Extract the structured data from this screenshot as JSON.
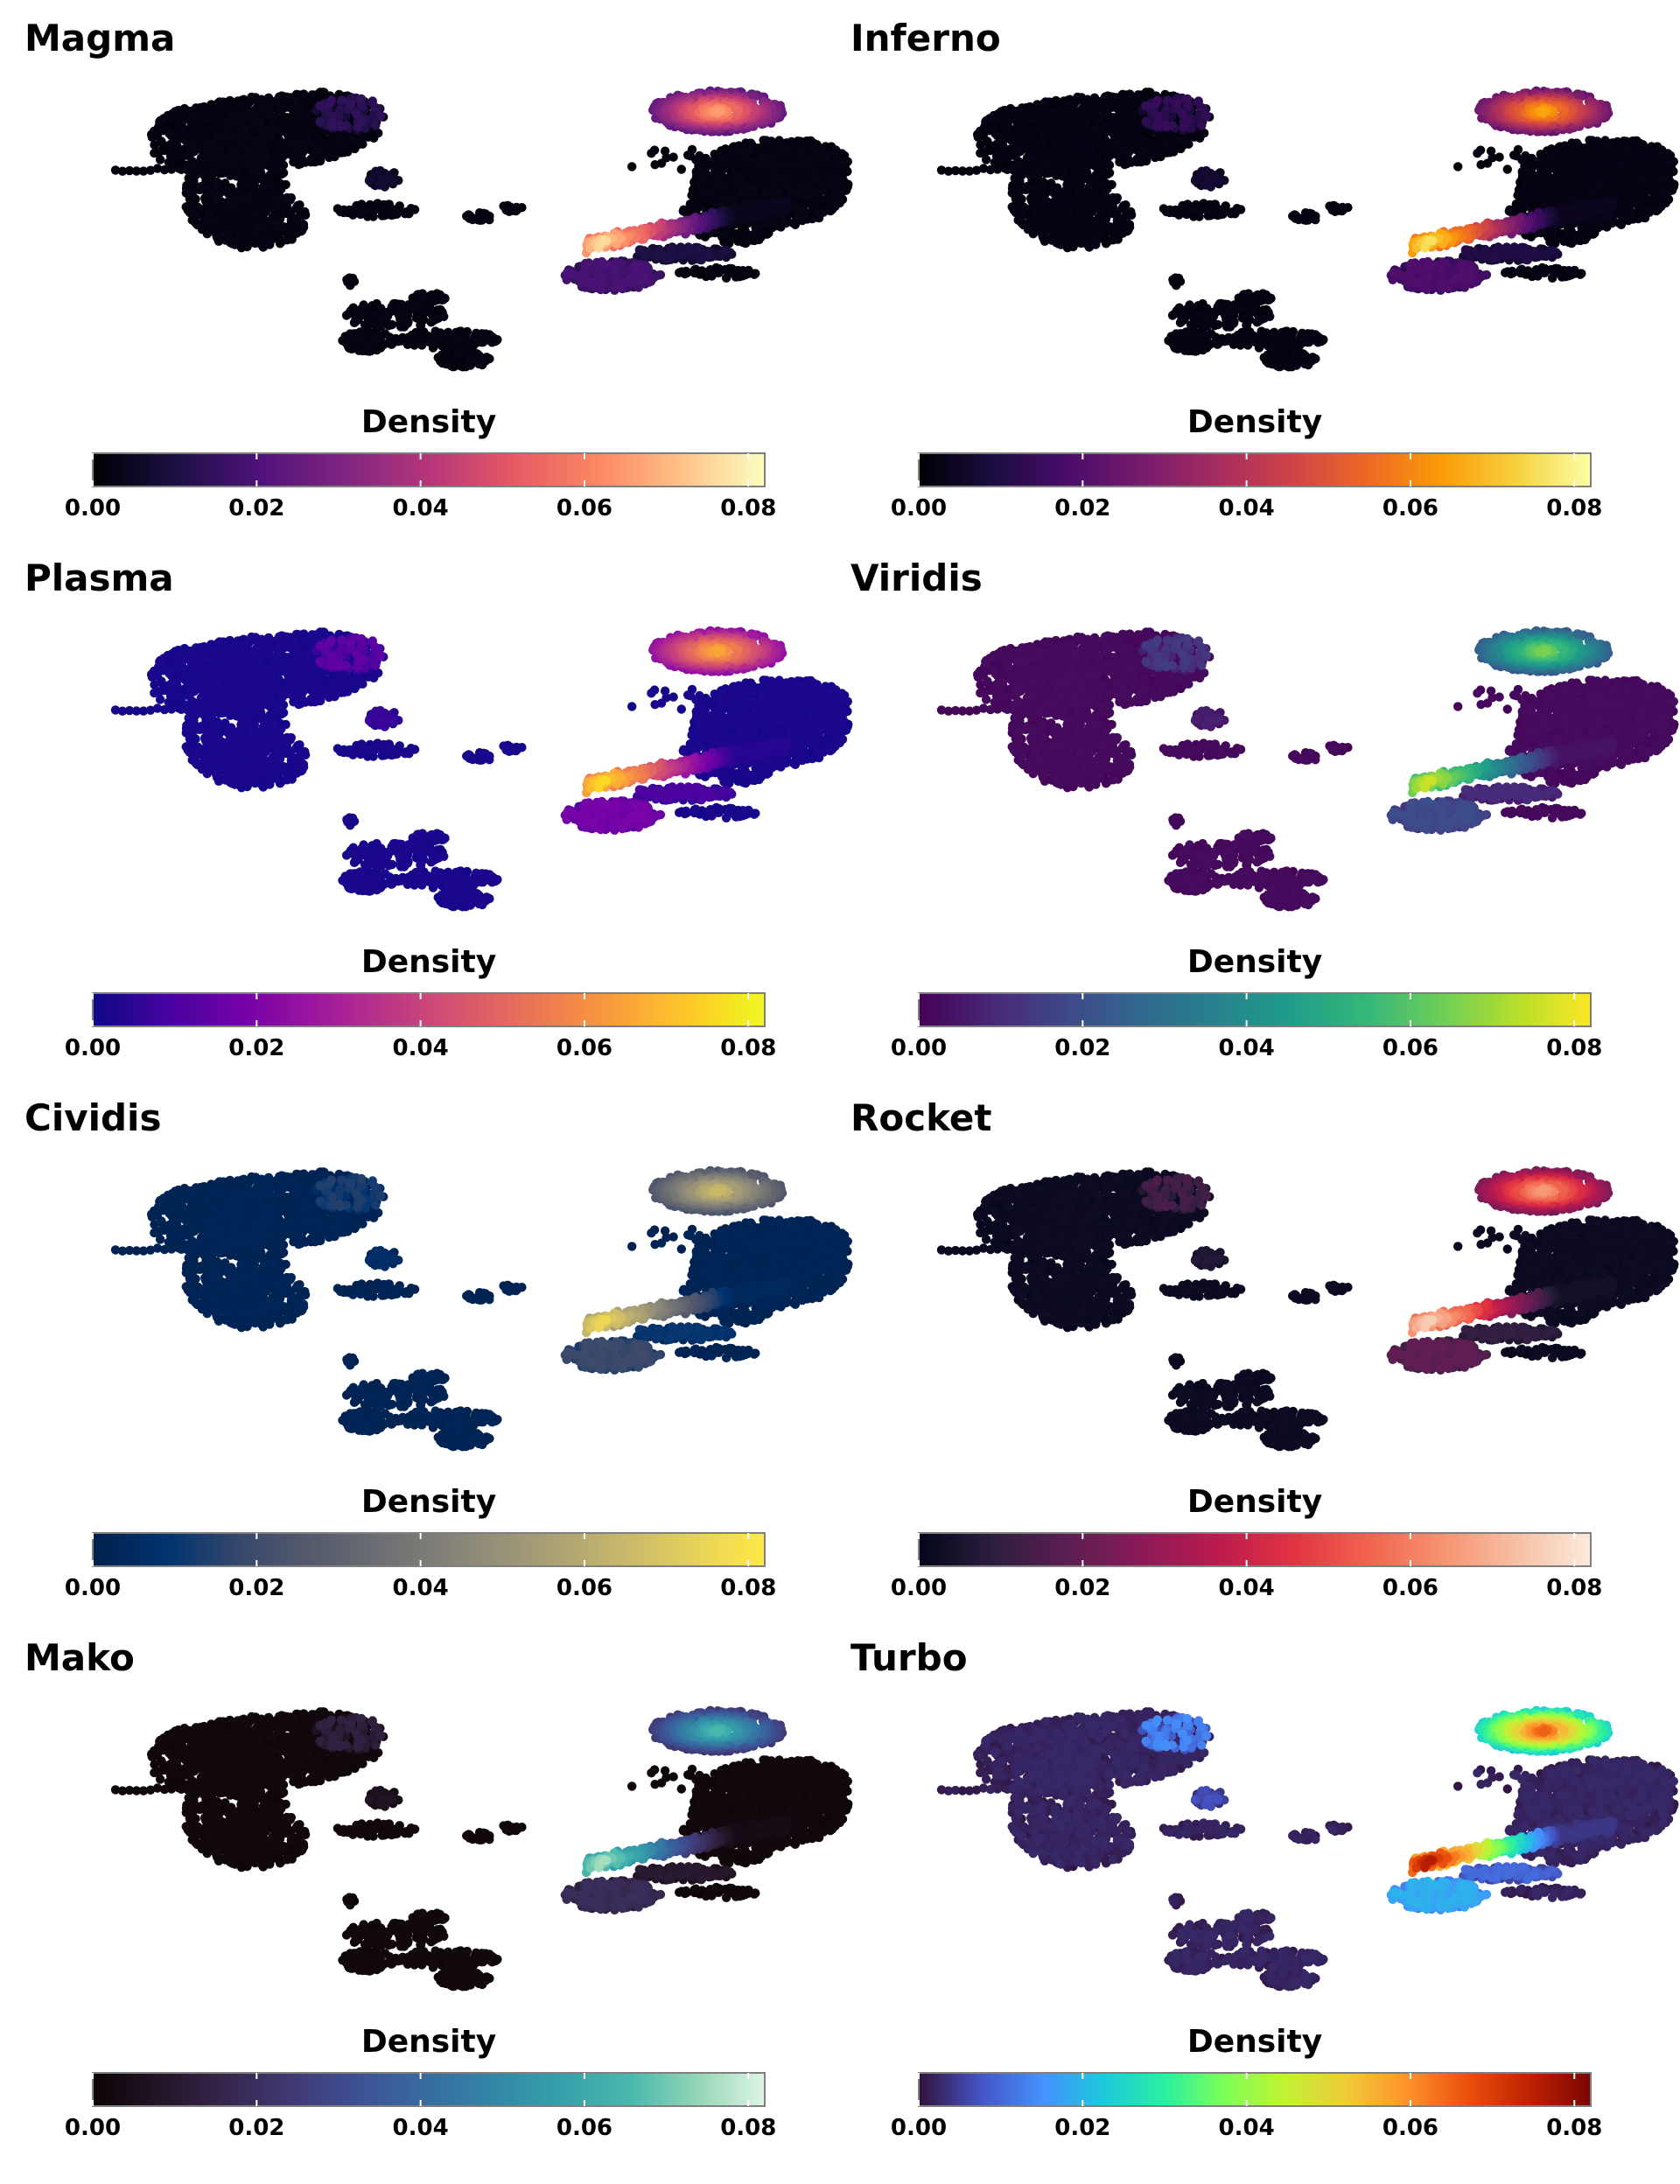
{
  "chart_data": [
    {
      "type": "scatter",
      "title": "Magma",
      "colormap": "magma",
      "legend": {
        "title": "Density",
        "ticks": [
          "0.00",
          "0.02",
          "0.04",
          "0.06",
          "0.08"
        ],
        "range": [
          0,
          0.082
        ],
        "position": "bottom"
      },
      "colors": [
        "#000004",
        "#1c1044",
        "#4f127b",
        "#812581",
        "#b5367a",
        "#e55964",
        "#fb8761",
        "#fec287",
        "#fcfdbf"
      ]
    },
    {
      "type": "scatter",
      "title": "Inferno",
      "colormap": "inferno",
      "legend": {
        "title": "Density",
        "ticks": [
          "0.00",
          "0.02",
          "0.04",
          "0.06",
          "0.08"
        ],
        "range": [
          0,
          0.082
        ],
        "position": "bottom"
      },
      "colors": [
        "#000004",
        "#1b0c41",
        "#4a0c6b",
        "#781c6d",
        "#a52c60",
        "#cf4446",
        "#ed6925",
        "#fb9b06",
        "#f7d13d",
        "#fcffa4"
      ]
    },
    {
      "type": "scatter",
      "title": "Plasma",
      "colormap": "plasma",
      "legend": {
        "title": "Density",
        "ticks": [
          "0.00",
          "0.02",
          "0.04",
          "0.06",
          "0.08"
        ],
        "range": [
          0,
          0.082
        ],
        "position": "bottom"
      },
      "colors": [
        "#0d0887",
        "#47039f",
        "#7301a8",
        "#9c179e",
        "#bd3786",
        "#d8576b",
        "#ed7953",
        "#fa9e3b",
        "#fdc926",
        "#f0f921"
      ]
    },
    {
      "type": "scatter",
      "title": "Viridis",
      "colormap": "viridis",
      "legend": {
        "title": "Density",
        "ticks": [
          "0.00",
          "0.02",
          "0.04",
          "0.06",
          "0.08"
        ],
        "range": [
          0,
          0.082
        ],
        "position": "bottom"
      },
      "colors": [
        "#440154",
        "#482878",
        "#3e4989",
        "#31688e",
        "#26828e",
        "#1f9e89",
        "#35b779",
        "#6ece58",
        "#b5de2b",
        "#fde725"
      ]
    },
    {
      "type": "scatter",
      "title": "Cividis",
      "colormap": "cividis",
      "legend": {
        "title": "Density",
        "ticks": [
          "0.00",
          "0.02",
          "0.04",
          "0.06",
          "0.08"
        ],
        "range": [
          0,
          0.082
        ],
        "position": "bottom"
      },
      "colors": [
        "#00204d",
        "#00336f",
        "#39486b",
        "#575c6d",
        "#707173",
        "#8a8779",
        "#a69d75",
        "#c4b56c",
        "#e4cf5b",
        "#ffea46"
      ]
    },
    {
      "type": "scatter",
      "title": "Rocket",
      "colormap": "rocket",
      "legend": {
        "title": "Density",
        "ticks": [
          "0.00",
          "0.02",
          "0.04",
          "0.06",
          "0.08"
        ],
        "range": [
          0,
          0.082
        ],
        "position": "bottom"
      },
      "colors": [
        "#03051a",
        "#2c1e3e",
        "#5c1e51",
        "#8b1a58",
        "#bb1a4e",
        "#e13342",
        "#f1634d",
        "#f69270",
        "#f7bfa3",
        "#faebdd"
      ]
    },
    {
      "type": "scatter",
      "title": "Mako",
      "colormap": "mako",
      "legend": {
        "title": "Density",
        "ticks": [
          "0.00",
          "0.02",
          "0.04",
          "0.06",
          "0.08"
        ],
        "range": [
          0,
          0.082
        ],
        "position": "bottom"
      },
      "colors": [
        "#0b0405",
        "#231526",
        "#35264c",
        "#403a75",
        "#3d5296",
        "#366da0",
        "#3487a6",
        "#35a1ab",
        "#49b9ad",
        "#94d6b6",
        "#def5e5"
      ]
    },
    {
      "type": "scatter",
      "title": "Turbo",
      "colormap": "turbo",
      "legend": {
        "title": "Density",
        "ticks": [
          "0.00",
          "0.02",
          "0.04",
          "0.06",
          "0.08"
        ],
        "range": [
          0,
          0.082
        ],
        "position": "bottom"
      },
      "colors": [
        "#30123b",
        "#4454c4",
        "#4490fe",
        "#1fc8de",
        "#29efa2",
        "#7dff56",
        "#c1f334",
        "#f1ca3a",
        "#fe922a",
        "#ea4f0d",
        "#be2102",
        "#7a0403"
      ]
    }
  ]
}
